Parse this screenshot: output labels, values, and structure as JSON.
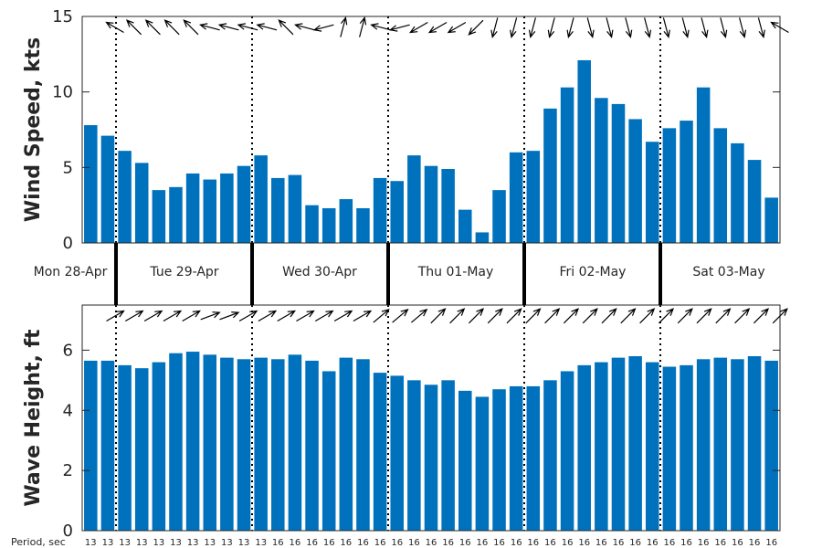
{
  "colors": {
    "bar": "#0072BD",
    "axis": "#262626",
    "arrow": "#000000"
  },
  "chart_data": [
    {
      "type": "bar",
      "ylabel": "Wind Speed, kts",
      "ylim": [
        0,
        15
      ],
      "yticks": [
        0,
        5,
        10,
        15
      ],
      "values": [
        7.8,
        7.1,
        6.1,
        5.3,
        3.5,
        3.7,
        4.6,
        4.2,
        4.6,
        5.1,
        5.8,
        4.3,
        4.5,
        2.5,
        2.3,
        2.9,
        2.3,
        4.3,
        4.1,
        5.8,
        5.1,
        4.9,
        2.2,
        0.7,
        3.5,
        6.0,
        6.1,
        8.9,
        10.3,
        12.1,
        9.6,
        9.2,
        8.2,
        6.7,
        7.6,
        8.1,
        10.3,
        7.6,
        6.6,
        5.5,
        3.0
      ],
      "direction_arrows_deg": [
        150,
        135,
        135,
        135,
        135,
        165,
        165,
        165,
        165,
        135,
        165,
        195,
        75,
        75,
        165,
        195,
        210,
        210,
        210,
        225,
        255,
        255,
        255,
        255,
        255,
        285,
        285,
        285,
        285,
        285,
        285,
        285,
        285,
        285,
        285,
        150
      ]
    },
    {
      "type": "bar",
      "ylabel": "Wave Height, ft",
      "ylim": [
        0,
        7.5
      ],
      "yticks": [
        0,
        2,
        4,
        6
      ],
      "values": [
        5.65,
        5.65,
        5.5,
        5.4,
        5.6,
        5.9,
        5.95,
        5.85,
        5.75,
        5.7,
        5.75,
        5.7,
        5.85,
        5.65,
        5.3,
        5.75,
        5.7,
        5.25,
        5.15,
        5.0,
        4.85,
        5.0,
        4.65,
        4.45,
        4.7,
        4.8,
        4.8,
        5.0,
        5.3,
        5.5,
        5.6,
        5.75,
        5.8,
        5.6,
        5.45,
        5.5,
        5.7,
        5.75,
        5.7,
        5.8,
        5.65
      ],
      "direction_arrows_deg": [
        30,
        30,
        30,
        30,
        30,
        20,
        20,
        30,
        30,
        30,
        30,
        30,
        30,
        30,
        40,
        40,
        40,
        45,
        45,
        45,
        45,
        45,
        45,
        45,
        45,
        45,
        45,
        45,
        45,
        45,
        45,
        45,
        45,
        45,
        45,
        45
      ]
    }
  ],
  "day_labels": [
    "Mon 28-Apr",
    "Tue 29-Apr",
    "Wed 30-Apr",
    "Thu 01-May",
    "Fri 02-May",
    "Sat 03-May"
  ],
  "period_label": "Period, sec",
  "periods": [
    "13",
    "13",
    "13",
    "13",
    "13",
    "13",
    "13",
    "13",
    "13",
    "13",
    "13",
    "16",
    "16",
    "16",
    "16",
    "16",
    "16",
    "16",
    "16",
    "16",
    "16",
    "16",
    "16",
    "16",
    "16",
    "16",
    "16",
    "16",
    "16",
    "16",
    "16",
    "16",
    "16",
    "16",
    "16",
    "16",
    "16",
    "16",
    "16",
    "16",
    "16"
  ]
}
